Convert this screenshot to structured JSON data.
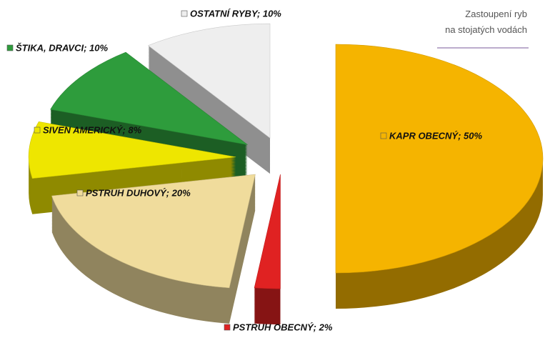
{
  "chart_data": {
    "type": "pie3d",
    "title": [
      "Zastoupení ryb",
      "na stojatých vodách"
    ],
    "labels": [
      "KAPR OBECNÝ; 50%",
      "PSTRUH OBECNÝ; 2%",
      "PSTRUH DUHOVÝ; 20%",
      "SIVEN AMERICKÝ; 8%",
      "ŠTIKA, DRAVCI; 10%",
      "OSTATNÍ RYBY; 10%"
    ],
    "values": [
      50,
      2,
      20,
      8,
      10,
      10
    ],
    "colors": [
      "#f5b400",
      "#e02222",
      "#f0dc9c",
      "#eee600",
      "#2e9c3c",
      "#eeeeee"
    ]
  }
}
